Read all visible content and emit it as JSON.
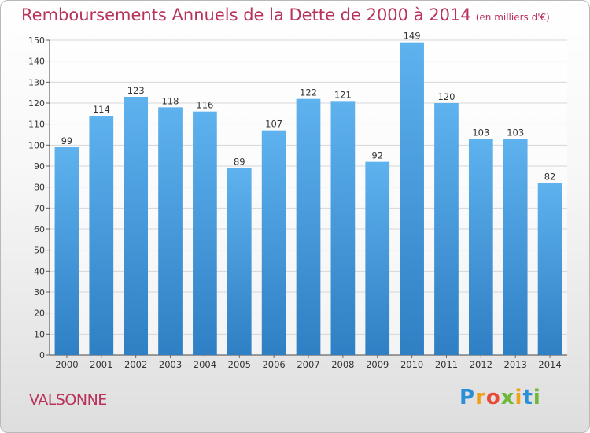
{
  "chart_data": {
    "type": "bar",
    "title": "Remboursements Annuels de la Dette de 2000 à 2014",
    "unit": "(en milliers d'€)",
    "categories": [
      "2000",
      "2001",
      "2002",
      "2003",
      "2004",
      "2005",
      "2006",
      "2007",
      "2008",
      "2009",
      "2010",
      "2011",
      "2012",
      "2013",
      "2014"
    ],
    "values": [
      99,
      114,
      123,
      118,
      116,
      89,
      107,
      122,
      121,
      92,
      149,
      120,
      103,
      103,
      82
    ],
    "ylim": [
      0,
      150
    ],
    "yticks": [
      0,
      10,
      20,
      30,
      40,
      50,
      60,
      70,
      80,
      90,
      100,
      110,
      120,
      130,
      140,
      150
    ],
    "grid": true,
    "legend": "none",
    "bar_color": "#4a9de0"
  },
  "commune": "VALSONNE",
  "logo": {
    "letters": [
      "P",
      "r",
      "o",
      "x",
      "i",
      "t",
      "i"
    ],
    "colors": [
      "#2a8fd6",
      "#f0a11b",
      "#e84a36",
      "#70b839",
      "#f0a11b",
      "#2a8fd6",
      "#70b839"
    ]
  }
}
